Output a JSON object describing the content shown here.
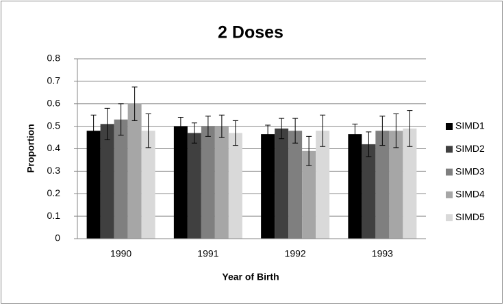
{
  "chart_data": {
    "type": "bar",
    "title": "2 Doses",
    "x_label": "Year of Birth",
    "y_label": "Proportion",
    "categories": [
      "1990",
      "1991",
      "1992",
      "1993"
    ],
    "series": [
      {
        "name": "SIMD1",
        "color": "#000000",
        "values": [
          0.48,
          0.5,
          0.465,
          0.465
        ],
        "errors": [
          0.07,
          0.04,
          0.04,
          0.045
        ]
      },
      {
        "name": "SIMD2",
        "color": "#404040",
        "values": [
          0.51,
          0.47,
          0.49,
          0.42
        ],
        "errors": [
          0.07,
          0.045,
          0.045,
          0.055
        ]
      },
      {
        "name": "SIMD3",
        "color": "#7f7f7f",
        "values": [
          0.53,
          0.5,
          0.48,
          0.48
        ],
        "errors": [
          0.07,
          0.045,
          0.055,
          0.065
        ]
      },
      {
        "name": "SIMD4",
        "color": "#a6a6a6",
        "values": [
          0.6,
          0.5,
          0.39,
          0.48
        ],
        "errors": [
          0.075,
          0.05,
          0.065,
          0.075
        ]
      },
      {
        "name": "SIMD5",
        "color": "#d9d9d9",
        "values": [
          0.48,
          0.47,
          0.48,
          0.49
        ],
        "errors": [
          0.075,
          0.055,
          0.07,
          0.08
        ]
      }
    ],
    "ylim": [
      0,
      0.8
    ],
    "yticks": [
      0,
      0.1,
      0.2,
      0.3,
      0.4,
      0.5,
      0.6,
      0.7,
      0.8
    ],
    "grid": true,
    "legend": "right"
  }
}
